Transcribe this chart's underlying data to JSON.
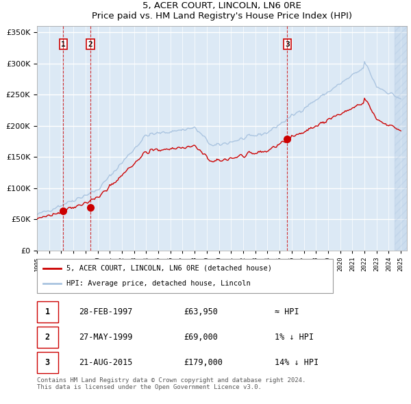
{
  "title": "5, ACER COURT, LINCOLN, LN6 0RE",
  "subtitle": "Price paid vs. HM Land Registry's House Price Index (HPI)",
  "ylabel_values": [
    "£0",
    "£50K",
    "£100K",
    "£150K",
    "£200K",
    "£250K",
    "£300K",
    "£350K"
  ],
  "yticks": [
    0,
    50000,
    100000,
    150000,
    200000,
    250000,
    300000,
    350000
  ],
  "ylim": [
    0,
    360000
  ],
  "xlim_start": 1995.0,
  "xlim_end": 2025.5,
  "hpi_color": "#aac4e0",
  "price_color": "#cc0000",
  "bg_color": "#dce9f5",
  "grid_color": "#ffffff",
  "sale_points": [
    {
      "year": 1997.16,
      "price": 63950,
      "label": "1"
    },
    {
      "year": 1999.41,
      "price": 69000,
      "label": "2"
    },
    {
      "year": 2015.64,
      "price": 179000,
      "label": "3"
    }
  ],
  "vline_years": [
    1997.16,
    1999.41,
    2015.64
  ],
  "legend_entries": [
    "5, ACER COURT, LINCOLN, LN6 0RE (detached house)",
    "HPI: Average price, detached house, Lincoln"
  ],
  "table_data": [
    {
      "num": "1",
      "date": "28-FEB-1997",
      "price": "£63,950",
      "hpi": "≈ HPI"
    },
    {
      "num": "2",
      "date": "27-MAY-1999",
      "price": "£69,000",
      "hpi": "1% ↓ HPI"
    },
    {
      "num": "3",
      "date": "21-AUG-2015",
      "price": "£179,000",
      "hpi": "14% ↓ HPI"
    }
  ],
  "footer": "Contains HM Land Registry data © Crown copyright and database right 2024.\nThis data is licensed under the Open Government Licence v3.0.",
  "hatch_color": "#aac4e0"
}
